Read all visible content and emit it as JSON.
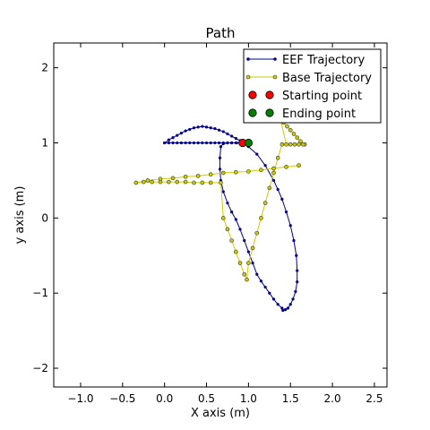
{
  "chart_data": {
    "type": "line",
    "title": "Path",
    "xlabel": "X axis (m)",
    "ylabel": "y axis (m)",
    "xlim": [
      -1.32,
      2.65
    ],
    "ylim": [
      -2.25,
      2.33
    ],
    "xticks": [
      -1.0,
      -0.5,
      0.0,
      0.5,
      1.0,
      1.5,
      2.0,
      2.5
    ],
    "yticks": [
      -2,
      -1,
      0,
      1,
      2
    ],
    "xtick_labels": [
      "−1.0",
      "−0.5",
      "0.0",
      "0.5",
      "1.0",
      "1.5",
      "2.0",
      "2.5"
    ],
    "ytick_labels": [
      "−2",
      "−1",
      "0",
      "1",
      "2"
    ],
    "grid": false,
    "legend_position": "top-right",
    "series": [
      {
        "name": "EEF Trajectory",
        "color": "#00008b",
        "marker": "dot",
        "x": [
          0.0,
          0.05,
          0.1,
          0.15,
          0.2,
          0.25,
          0.3,
          0.35,
          0.4,
          0.45,
          0.5,
          0.55,
          0.6,
          0.65,
          0.7,
          0.75,
          0.8,
          0.85,
          0.9,
          0.95,
          1.0,
          1.1,
          1.2,
          1.3,
          1.35,
          1.4,
          1.45,
          1.5,
          1.54,
          1.57,
          1.58,
          1.58,
          1.56,
          1.53,
          1.5,
          1.47,
          1.44,
          1.41,
          1.4,
          1.35,
          1.3,
          1.25,
          1.2,
          1.15,
          1.1,
          1.05,
          1.0,
          0.95,
          0.9,
          0.85,
          0.8,
          0.75,
          0.7,
          0.67,
          0.66,
          0.66,
          0.67,
          0.7,
          0.75,
          0.8,
          0.86,
          0.93,
          0.85,
          0.8,
          0.75,
          0.7,
          0.65,
          0.6,
          0.55,
          0.5,
          0.45,
          0.4,
          0.35,
          0.3,
          0.25,
          0.2,
          0.15,
          0.1,
          0.05,
          0.0
        ],
        "y": [
          1.0,
          1.04,
          1.07,
          1.1,
          1.13,
          1.16,
          1.18,
          1.2,
          1.21,
          1.22,
          1.21,
          1.2,
          1.19,
          1.17,
          1.15,
          1.12,
          1.09,
          1.06,
          1.03,
          1.0,
          0.95,
          0.85,
          0.7,
          0.5,
          0.38,
          0.25,
          0.08,
          -0.1,
          -0.3,
          -0.5,
          -0.7,
          -0.85,
          -0.98,
          -1.08,
          -1.15,
          -1.2,
          -1.22,
          -1.23,
          -1.2,
          -1.15,
          -1.08,
          -1.0,
          -0.92,
          -0.84,
          -0.75,
          -0.6,
          -0.45,
          -0.3,
          -0.15,
          -0.02,
          0.08,
          0.2,
          0.35,
          0.5,
          0.65,
          0.8,
          0.95,
          0.99,
          1.0,
          1.0,
          1.0,
          1.0,
          1.0,
          1.0,
          1.0,
          1.0,
          1.0,
          1.0,
          1.0,
          1.0,
          1.0,
          1.0,
          1.0,
          1.0,
          1.0,
          1.0,
          1.0,
          1.0,
          1.0,
          1.0
        ]
      },
      {
        "name": "Base Trajectory",
        "color": "#cccc00",
        "marker": "circle",
        "x": [
          1.67,
          1.62,
          1.58,
          1.54,
          1.5,
          1.46,
          1.42,
          1.38,
          1.45,
          1.5,
          1.55,
          1.6,
          1.65,
          1.4,
          1.35,
          1.3,
          1.25,
          1.2,
          1.15,
          1.1,
          1.05,
          1.0,
          0.98,
          0.95,
          0.9,
          0.85,
          0.8,
          0.75,
          0.7,
          0.67,
          0.55,
          0.45,
          0.35,
          0.25,
          0.15,
          0.05,
          -0.05,
          -0.15,
          -0.25,
          -0.34,
          -0.2,
          -0.05,
          0.1,
          0.25,
          0.4,
          0.55,
          0.7,
          0.85,
          1.0,
          1.15,
          1.3,
          1.45,
          1.6
        ],
        "y": [
          0.98,
          1.02,
          1.07,
          1.12,
          1.17,
          1.22,
          1.27,
          1.32,
          0.98,
          0.98,
          0.98,
          0.98,
          0.98,
          0.98,
          0.8,
          0.6,
          0.4,
          0.2,
          0.0,
          -0.2,
          -0.4,
          -0.6,
          -0.82,
          -0.75,
          -0.6,
          -0.45,
          -0.3,
          -0.15,
          0.0,
          0.47,
          0.47,
          0.47,
          0.47,
          0.48,
          0.48,
          0.48,
          0.48,
          0.48,
          0.48,
          0.47,
          0.5,
          0.52,
          0.53,
          0.55,
          0.56,
          0.58,
          0.6,
          0.61,
          0.62,
          0.64,
          0.66,
          0.68,
          0.7
        ]
      }
    ],
    "points": [
      {
        "name": "Starting point",
        "color": "#ff0000",
        "x": 0.93,
        "y": 1.0
      },
      {
        "name": "Ending point",
        "color": "#008000",
        "x": 1.0,
        "y": 1.0
      }
    ]
  }
}
